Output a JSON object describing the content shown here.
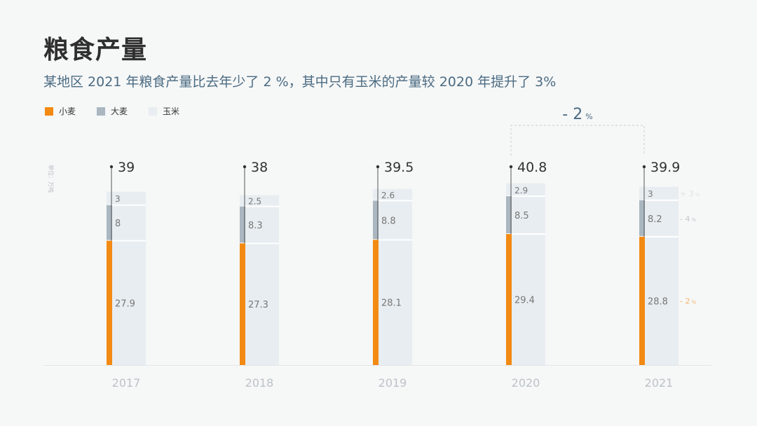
{
  "title": "粮食产量",
  "subtitle": "某地区 2021 年粮食产量比去年少了 2 %，其中只有玉米的产量较 2020 年提升了 3%",
  "unit_label": "单位：万吨",
  "colors": {
    "wheat": "#f28a13",
    "barley": "#aab7c1",
    "corn": "#e8edf1"
  },
  "chart_data": {
    "type": "bar",
    "stacked": true,
    "categories": [
      "2017",
      "2018",
      "2019",
      "2020",
      "2021"
    ],
    "series": [
      {
        "name": "小麦",
        "key": "wheat",
        "values": [
          27.9,
          27.3,
          28.1,
          29.4,
          28.8
        ]
      },
      {
        "name": "大麦",
        "key": "barley",
        "values": [
          8,
          8.3,
          8.8,
          8.5,
          8.2
        ]
      },
      {
        "name": "玉米",
        "key": "corn",
        "values": [
          3,
          2.5,
          2.6,
          2.9,
          3
        ]
      }
    ],
    "totals": [
      "39",
      "38",
      "39.5",
      "40.8",
      "39.9"
    ],
    "ylim": [
      0,
      48
    ],
    "grid": false,
    "legend": "top-left",
    "annotations": {
      "total_change": {
        "from": "2020",
        "to": "2021",
        "value": "- 2",
        "unit": "%"
      },
      "series_change_2021": [
        {
          "series": "wheat",
          "value": "- 2",
          "unit": "%"
        },
        {
          "series": "barley",
          "value": "- 4",
          "unit": "%"
        },
        {
          "series": "corn",
          "value": "+ 3",
          "unit": "%"
        }
      ]
    }
  }
}
